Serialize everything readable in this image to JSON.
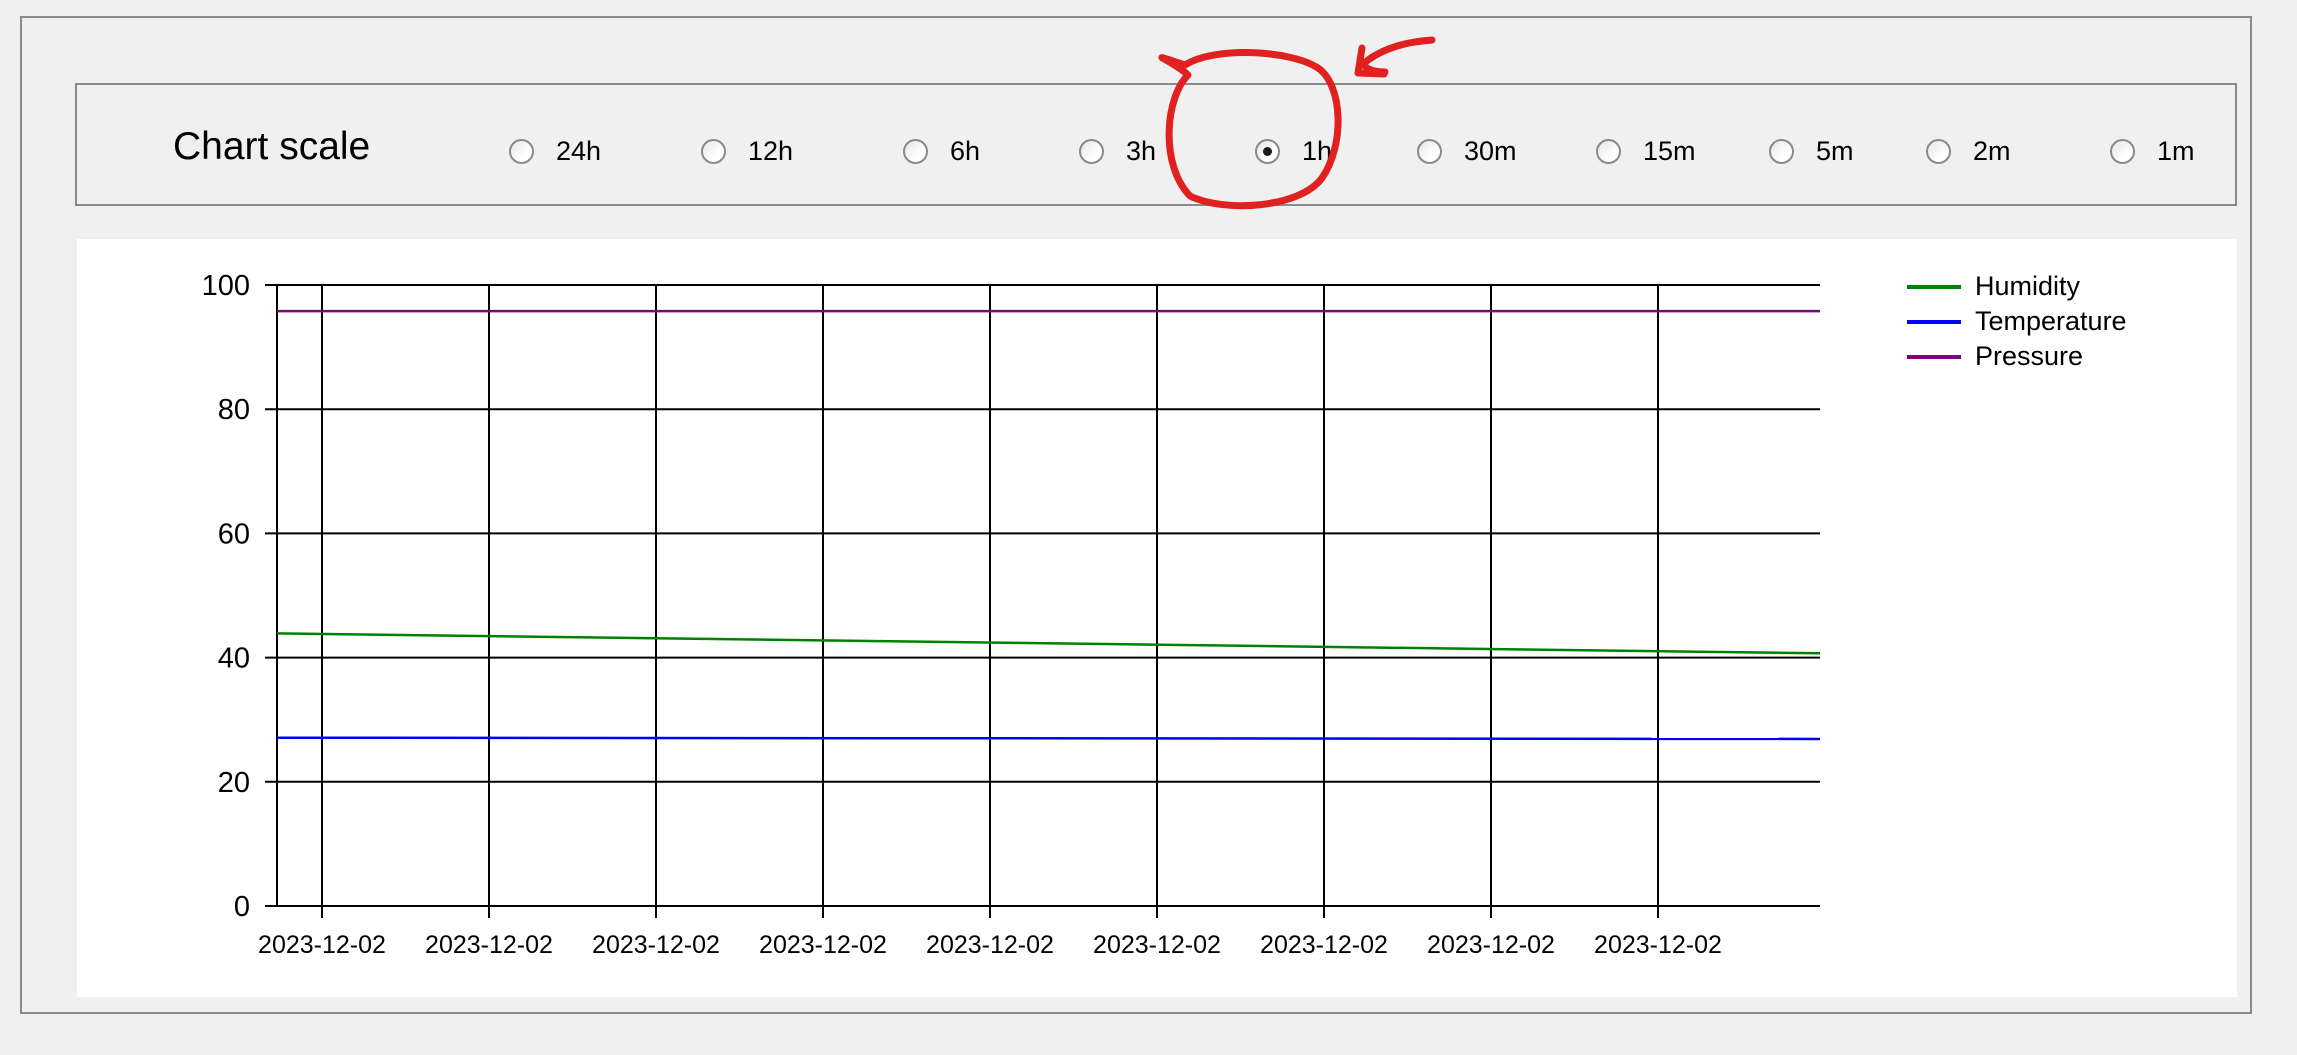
{
  "scale_panel": {
    "title": "Chart scale",
    "selected": "1h",
    "options": [
      {
        "label": "24h",
        "checked": false
      },
      {
        "label": "12h",
        "checked": false
      },
      {
        "label": "6h",
        "checked": false
      },
      {
        "label": "3h",
        "checked": false
      },
      {
        "label": "1h",
        "checked": true
      },
      {
        "label": "30m",
        "checked": false
      },
      {
        "label": "15m",
        "checked": false
      },
      {
        "label": "5m",
        "checked": false
      },
      {
        "label": "2m",
        "checked": false
      },
      {
        "label": "1m",
        "checked": false
      }
    ]
  },
  "annotation": {
    "shape": "hand-drawn circle with arrow",
    "color": "#e0211f",
    "highlights": "1h"
  },
  "chart_data": {
    "type": "line",
    "title": "",
    "xlabel": "",
    "ylabel": "",
    "ylim": [
      0,
      100
    ],
    "y_ticks": [
      0,
      20,
      40,
      60,
      80,
      100
    ],
    "x_tick_labels": [
      "2023-12-02",
      "2023-12-02",
      "2023-12-02",
      "2023-12-02",
      "2023-12-02",
      "2023-12-02",
      "2023-12-02",
      "2023-12-02",
      "2023-12-02"
    ],
    "grid": true,
    "legend_position": "right-top",
    "series": [
      {
        "name": "Humidity",
        "color": "#008000",
        "start": 43.9,
        "end": 40.7
      },
      {
        "name": "Temperature",
        "color": "#0000ff",
        "start": 27.1,
        "end": 26.9
      },
      {
        "name": "Pressure",
        "color": "#800080",
        "start": 95.8,
        "end": 95.8
      }
    ]
  }
}
